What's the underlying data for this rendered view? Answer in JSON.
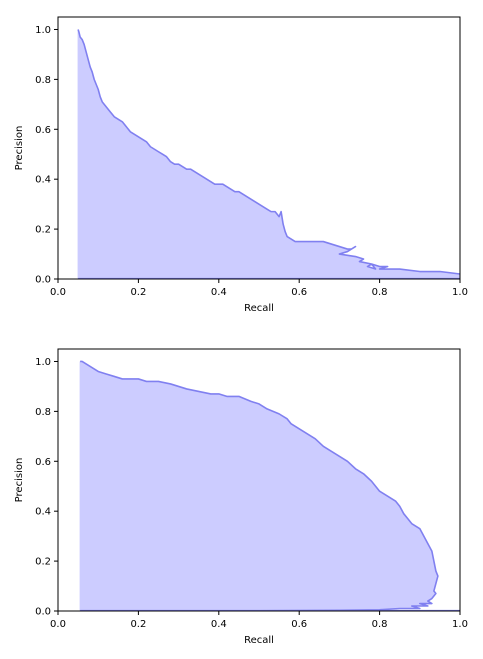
{
  "chart_data": [
    {
      "type": "area",
      "title": "",
      "xlabel": "Recall",
      "ylabel": "Precision",
      "xlim": [
        0.0,
        1.0
      ],
      "ylim": [
        0.0,
        1.05
      ],
      "xticks": [
        "0.0",
        "0.2",
        "0.4",
        "0.6",
        "0.8",
        "1.0"
      ],
      "yticks": [
        "0.0",
        "0.2",
        "0.4",
        "0.6",
        "0.8",
        "1.0"
      ],
      "grid": false,
      "legend": "none",
      "color": "#8080f0",
      "fill_color": "#ccccff",
      "series": [
        {
          "x": [
            0.05,
            0.052,
            0.055,
            0.06,
            0.065,
            0.07,
            0.075,
            0.08,
            0.085,
            0.09,
            0.095,
            0.1,
            0.105,
            0.11,
            0.115,
            0.12,
            0.13,
            0.14,
            0.15,
            0.16,
            0.17,
            0.18,
            0.19,
            0.2,
            0.21,
            0.22,
            0.23,
            0.24,
            0.25,
            0.26,
            0.27,
            0.28,
            0.29,
            0.3,
            0.31,
            0.32,
            0.33,
            0.34,
            0.35,
            0.36,
            0.37,
            0.38,
            0.39,
            0.4,
            0.41,
            0.42,
            0.43,
            0.44,
            0.45,
            0.46,
            0.47,
            0.48,
            0.49,
            0.5,
            0.51,
            0.52,
            0.53,
            0.54,
            0.55,
            0.555,
            0.56,
            0.565,
            0.57,
            0.58,
            0.59,
            0.6,
            0.62,
            0.64,
            0.66,
            0.68,
            0.7,
            0.72,
            0.73,
            0.74,
            0.72,
            0.7,
            0.74,
            0.76,
            0.75,
            0.78,
            0.77,
            0.79,
            0.78,
            0.8,
            0.82,
            0.8,
            0.85,
            0.9,
            0.95,
            1.0
          ],
          "y": [
            1.0,
            0.99,
            0.97,
            0.96,
            0.94,
            0.91,
            0.88,
            0.85,
            0.83,
            0.8,
            0.78,
            0.76,
            0.73,
            0.71,
            0.7,
            0.69,
            0.67,
            0.65,
            0.64,
            0.63,
            0.61,
            0.59,
            0.58,
            0.57,
            0.56,
            0.55,
            0.53,
            0.52,
            0.51,
            0.5,
            0.49,
            0.47,
            0.46,
            0.46,
            0.45,
            0.44,
            0.44,
            0.43,
            0.42,
            0.41,
            0.4,
            0.39,
            0.38,
            0.38,
            0.38,
            0.37,
            0.36,
            0.35,
            0.35,
            0.34,
            0.33,
            0.32,
            0.31,
            0.3,
            0.29,
            0.28,
            0.27,
            0.27,
            0.25,
            0.27,
            0.22,
            0.19,
            0.17,
            0.16,
            0.15,
            0.15,
            0.15,
            0.15,
            0.15,
            0.14,
            0.13,
            0.12,
            0.12,
            0.13,
            0.11,
            0.1,
            0.09,
            0.08,
            0.07,
            0.06,
            0.05,
            0.04,
            0.06,
            0.05,
            0.05,
            0.04,
            0.04,
            0.03,
            0.03,
            0.02
          ],
          "baseline": [
            [
              0.05,
              0.0
            ],
            [
              1.0,
              0.0
            ]
          ]
        }
      ]
    },
    {
      "type": "area",
      "title": "",
      "xlabel": "Recall",
      "ylabel": "Precision",
      "xlim": [
        0.0,
        1.0
      ],
      "ylim": [
        0.0,
        1.05
      ],
      "xticks": [
        "0.0",
        "0.2",
        "0.4",
        "0.6",
        "0.8",
        "1.0"
      ],
      "yticks": [
        "0.0",
        "0.2",
        "0.4",
        "0.6",
        "0.8",
        "1.0"
      ],
      "grid": false,
      "legend": "none",
      "color": "#8080f0",
      "fill_color": "#ccccff",
      "series": [
        {
          "x": [
            0.055,
            0.06,
            0.07,
            0.08,
            0.1,
            0.12,
            0.14,
            0.16,
            0.18,
            0.2,
            0.22,
            0.25,
            0.28,
            0.3,
            0.32,
            0.35,
            0.38,
            0.4,
            0.42,
            0.45,
            0.48,
            0.5,
            0.52,
            0.55,
            0.57,
            0.58,
            0.6,
            0.62,
            0.64,
            0.66,
            0.68,
            0.7,
            0.72,
            0.74,
            0.76,
            0.78,
            0.79,
            0.8,
            0.82,
            0.84,
            0.85,
            0.86,
            0.87,
            0.88,
            0.9,
            0.91,
            0.92,
            0.93,
            0.935,
            0.94,
            0.945,
            0.94,
            0.935,
            0.94,
            0.93,
            0.92,
            0.93,
            0.9,
            0.92,
            0.88,
            0.9,
            0.85,
            0.8,
            0.7,
            0.6,
            0.5
          ],
          "y": [
            1.0,
            1.0,
            0.99,
            0.98,
            0.96,
            0.95,
            0.94,
            0.93,
            0.93,
            0.93,
            0.92,
            0.92,
            0.91,
            0.9,
            0.89,
            0.88,
            0.87,
            0.87,
            0.86,
            0.86,
            0.84,
            0.83,
            0.81,
            0.79,
            0.77,
            0.75,
            0.73,
            0.71,
            0.69,
            0.66,
            0.64,
            0.62,
            0.6,
            0.57,
            0.55,
            0.52,
            0.5,
            0.48,
            0.46,
            0.44,
            0.42,
            0.39,
            0.37,
            0.35,
            0.33,
            0.3,
            0.27,
            0.24,
            0.2,
            0.16,
            0.14,
            0.11,
            0.08,
            0.07,
            0.05,
            0.04,
            0.03,
            0.03,
            0.02,
            0.02,
            0.01,
            0.01,
            0.005,
            0.003,
            0.002,
            0.001
          ],
          "baseline": [
            [
              0.055,
              0.0
            ],
            [
              1.0,
              0.0
            ]
          ]
        }
      ]
    }
  ]
}
